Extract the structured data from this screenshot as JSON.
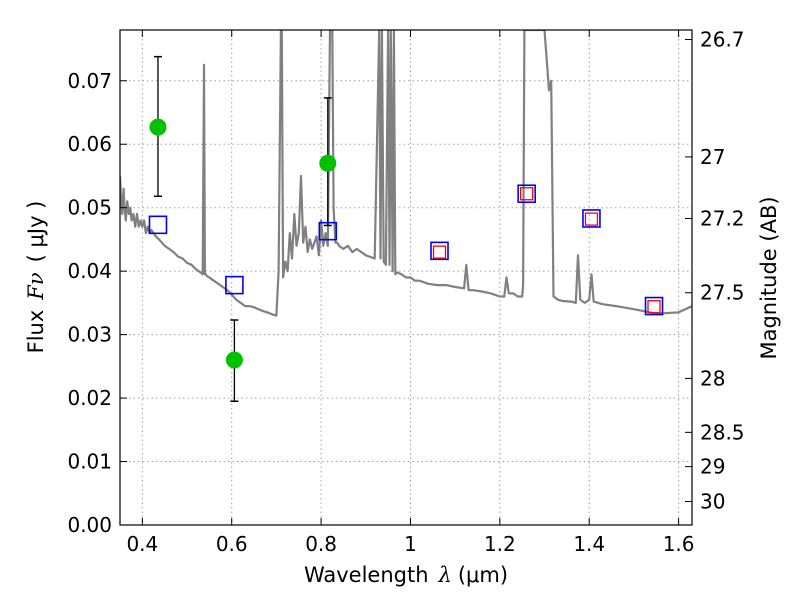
{
  "chart_data": {
    "type": "line",
    "title": "",
    "xlabel_prefix": "Wavelength",
    "xlabel_symbol": "λ",
    "xlabel_unit": "(μm)",
    "ylabel_prefix": "Flux",
    "ylabel_symbol": "Fν",
    "ylabel_unit": "( μJy )",
    "y2label": "Magnitude (AB)",
    "xlim": [
      0.35,
      1.63
    ],
    "ylim": [
      0.0,
      0.078
    ],
    "grid": true,
    "x_ticks": [
      0.4,
      0.6,
      0.8,
      1.0,
      1.2,
      1.4,
      1.6
    ],
    "x_tick_labels": [
      "0.4",
      "0.6",
      "0.8",
      "1",
      "1.2",
      "1.4",
      "1.6"
    ],
    "y_ticks": [
      0.0,
      0.01,
      0.02,
      0.03,
      0.04,
      0.05,
      0.06,
      0.07
    ],
    "y_tick_labels": [
      "0.00",
      "0.01",
      "0.02",
      "0.03",
      "0.04",
      "0.05",
      "0.06",
      "0.07"
    ],
    "mag_ticks": [
      {
        "label": "26.7",
        "flux": 0.0765
      },
      {
        "label": "27",
        "flux": 0.058
      },
      {
        "label": "27.2",
        "flux": 0.0483
      },
      {
        "label": "27.5",
        "flux": 0.0366
      },
      {
        "label": "28",
        "flux": 0.0231
      },
      {
        "label": "28.5",
        "flux": 0.0146
      },
      {
        "label": "29",
        "flux": 0.0092
      },
      {
        "label": "30",
        "flux": 0.0037
      }
    ],
    "series": [
      {
        "name": "model SED",
        "color": "#808080",
        "x": [
          0.35,
          0.352,
          0.355,
          0.358,
          0.36,
          0.363,
          0.366,
          0.37,
          0.373,
          0.376,
          0.38,
          0.384,
          0.388,
          0.392,
          0.396,
          0.4,
          0.404,
          0.408,
          0.412,
          0.416,
          0.42,
          0.425,
          0.43,
          0.44,
          0.45,
          0.46,
          0.47,
          0.48,
          0.49,
          0.5,
          0.51,
          0.52,
          0.53,
          0.535,
          0.538,
          0.54,
          0.542,
          0.545,
          0.55,
          0.56,
          0.57,
          0.58,
          0.59,
          0.6,
          0.61,
          0.62,
          0.63,
          0.64,
          0.65,
          0.66,
          0.67,
          0.68,
          0.69,
          0.7,
          0.705,
          0.71,
          0.712,
          0.715,
          0.72,
          0.725,
          0.73,
          0.735,
          0.74,
          0.745,
          0.75,
          0.755,
          0.76,
          0.765,
          0.77,
          0.775,
          0.78,
          0.785,
          0.79,
          0.795,
          0.8,
          0.805,
          0.81,
          0.815,
          0.82,
          0.825,
          0.828,
          0.832,
          0.836,
          0.84,
          0.85,
          0.86,
          0.87,
          0.88,
          0.9,
          0.92,
          0.93,
          0.933,
          0.936,
          0.94,
          0.945,
          0.95,
          0.953,
          0.956,
          0.96,
          0.963,
          0.966,
          0.97,
          0.98,
          0.99,
          1.0,
          1.01,
          1.02,
          1.04,
          1.06,
          1.08,
          1.1,
          1.12,
          1.125,
          1.13,
          1.14,
          1.16,
          1.18,
          1.2,
          1.21,
          1.215,
          1.22,
          1.23,
          1.24,
          1.25,
          1.252,
          1.255,
          1.26,
          1.27,
          1.28,
          1.3,
          1.31,
          1.315,
          1.32,
          1.33,
          1.34,
          1.36,
          1.37,
          1.375,
          1.38,
          1.39,
          1.4,
          1.405,
          1.41,
          1.43,
          1.46,
          1.5,
          1.55,
          1.6,
          1.63
        ],
        "y": [
          0.055,
          0.052,
          0.049,
          0.053,
          0.05,
          0.048,
          0.051,
          0.049,
          0.05,
          0.048,
          0.049,
          0.047,
          0.049,
          0.047,
          0.048,
          0.047,
          0.048,
          0.046,
          0.047,
          0.046,
          0.0465,
          0.046,
          0.0455,
          0.0448,
          0.044,
          0.0435,
          0.043,
          0.0423,
          0.042,
          0.0413,
          0.041,
          0.0403,
          0.0398,
          0.0395,
          0.0725,
          0.0395,
          0.0395,
          0.0392,
          0.039,
          0.0385,
          0.038,
          0.0375,
          0.037,
          0.0363,
          0.0355,
          0.035,
          0.0345,
          0.0345,
          0.0343,
          0.034,
          0.0337,
          0.0335,
          0.0332,
          0.033,
          0.04,
          0.078,
          0.078,
          0.039,
          0.0415,
          0.04,
          0.046,
          0.042,
          0.049,
          0.044,
          0.046,
          0.055,
          0.0445,
          0.047,
          0.043,
          0.045,
          0.0435,
          0.0445,
          0.0455,
          0.0425,
          0.048,
          0.044,
          0.046,
          0.044,
          0.078,
          0.078,
          0.05,
          0.0445,
          0.0445,
          0.044,
          0.0435,
          0.044,
          0.043,
          0.0435,
          0.0425,
          0.042,
          0.078,
          0.042,
          0.078,
          0.0415,
          0.041,
          0.078,
          0.041,
          0.078,
          0.04,
          0.078,
          0.0395,
          0.0398,
          0.0395,
          0.039,
          0.039,
          0.0385,
          0.0385,
          0.038,
          0.0378,
          0.0378,
          0.0375,
          0.0373,
          0.041,
          0.037,
          0.037,
          0.0368,
          0.0365,
          0.036,
          0.036,
          0.039,
          0.0365,
          0.0365,
          0.036,
          0.036,
          0.0378,
          0.078,
          0.078,
          0.078,
          0.078,
          0.078,
          0.0685,
          0.07,
          0.036,
          0.0355,
          0.0353,
          0.0352,
          0.035,
          0.0425,
          0.0355,
          0.035,
          0.0355,
          0.0395,
          0.0352,
          0.0348,
          0.0345,
          0.034,
          0.0333,
          0.0335,
          0.0345
        ]
      },
      {
        "name": "photometry (green circles)",
        "color": "#00c000",
        "points": [
          {
            "x": 0.435,
            "y": 0.0627,
            "err_low": 0.0518,
            "err_high": 0.0738
          },
          {
            "x": 0.606,
            "y": 0.026,
            "err_low": 0.0195,
            "err_high": 0.0323
          },
          {
            "x": 0.815,
            "y": 0.057,
            "err_low": 0.0472,
            "err_high": 0.0673
          }
        ]
      },
      {
        "name": "model photometry (blue squares)",
        "color": "#0000ff",
        "points": [
          {
            "x": 0.435,
            "y": 0.0473
          },
          {
            "x": 0.606,
            "y": 0.0378
          },
          {
            "x": 0.815,
            "y": 0.0463
          },
          {
            "x": 1.065,
            "y": 0.0432
          },
          {
            "x": 1.26,
            "y": 0.0522
          },
          {
            "x": 1.405,
            "y": 0.0483
          },
          {
            "x": 1.545,
            "y": 0.0345
          }
        ]
      },
      {
        "name": "model photometry (red squares)",
        "color": "#ff0000",
        "points": [
          {
            "x": 1.065,
            "y": 0.043
          },
          {
            "x": 1.26,
            "y": 0.0522
          },
          {
            "x": 1.405,
            "y": 0.0482
          },
          {
            "x": 1.545,
            "y": 0.0344
          }
        ]
      }
    ]
  }
}
